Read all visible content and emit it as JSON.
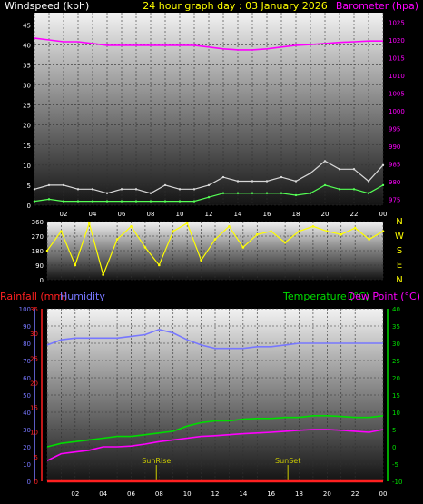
{
  "colors": {
    "wind": "#ffffff",
    "gust": "#d8d8d8",
    "wind_avg": "#55ff55",
    "barometer": "#ff00ff",
    "direction": "#ffff00",
    "rainfall": "#ff2020",
    "humidity": "#7777ff",
    "temperature": "#00dd00",
    "dewpoint": "#ff00ff",
    "title": "#ffff00",
    "sunmarker": "#cccc00",
    "axis": "#ffffff"
  },
  "chart_data": [
    {
      "type": "line",
      "title": "24 hour graph day : 03 January 2026",
      "left_label": "Windspeed (kph)",
      "right_label": "Barometer (hpa)",
      "x_tick_labels": [
        "02",
        "04",
        "06",
        "08",
        "10",
        "12",
        "14",
        "16",
        "18",
        "20",
        "22",
        "00"
      ],
      "y_left": {
        "ticks": [
          "0",
          "5",
          "10",
          "15",
          "20",
          "25",
          "30",
          "35",
          "40",
          "45"
        ],
        "lim": [
          0,
          48
        ]
      },
      "y_right": {
        "ticks": [
          "975",
          "980",
          "985",
          "990",
          "995",
          "1000",
          "1005",
          "1010",
          "1015",
          "1020",
          "1025"
        ],
        "lim": [
          973.3,
          1027.7
        ]
      },
      "series": [
        {
          "key": "wind_gust",
          "axis": "left",
          "x": [
            0,
            1,
            2,
            3,
            4,
            5,
            6,
            7,
            8,
            9,
            10,
            11,
            12,
            13,
            14,
            15,
            16,
            17,
            18,
            19,
            20,
            21,
            22,
            23,
            24
          ],
          "y": [
            4,
            5,
            5,
            4,
            4,
            3,
            4,
            4,
            3,
            5,
            4,
            4,
            5,
            7,
            6,
            6,
            6,
            7,
            6,
            8,
            11,
            9,
            9,
            6,
            10
          ]
        },
        {
          "key": "wind_avg",
          "axis": "left",
          "x": [
            0,
            1,
            2,
            3,
            4,
            5,
            6,
            7,
            8,
            9,
            10,
            11,
            12,
            13,
            14,
            15,
            16,
            17,
            18,
            19,
            20,
            21,
            22,
            23,
            24
          ],
          "y": [
            1,
            1.5,
            1,
            1,
            1,
            1,
            1,
            1,
            1,
            1,
            1,
            1,
            2,
            3,
            3,
            3,
            3,
            3,
            2.5,
            3,
            5,
            4,
            4,
            3,
            5
          ]
        },
        {
          "key": "barometer",
          "axis": "right",
          "x": [
            0,
            1,
            2,
            3,
            4,
            5,
            6,
            7,
            8,
            9,
            10,
            11,
            12,
            13,
            14,
            15,
            16,
            17,
            18,
            19,
            20,
            21,
            22,
            23,
            24
          ],
          "y": [
            1020.5,
            1020,
            1019.5,
            1019.5,
            1019,
            1018.5,
            1018.5,
            1018.5,
            1018.5,
            1018.5,
            1018.5,
            1018.5,
            1018,
            1017.5,
            1017.2,
            1017.2,
            1017.5,
            1018,
            1018.5,
            1018.7,
            1019,
            1019.3,
            1019.5,
            1019.7,
            1019.7
          ]
        }
      ]
    },
    {
      "type": "scatter",
      "right_labels": [
        "N",
        "W",
        "S",
        "E",
        "N"
      ],
      "y_left": {
        "ticks": [
          "0",
          "90",
          "180",
          "270",
          "360"
        ],
        "lim": [
          0,
          360
        ]
      },
      "series": [
        {
          "key": "wind_direction",
          "x": [
            0,
            1,
            2,
            3,
            4,
            5,
            6,
            7,
            8,
            9,
            10,
            11,
            12,
            13,
            14,
            15,
            16,
            17,
            18,
            19,
            20,
            21,
            22,
            23,
            24
          ],
          "y": [
            180,
            300,
            90,
            350,
            30,
            250,
            330,
            200,
            90,
            300,
            350,
            120,
            250,
            330,
            200,
            280,
            300,
            230,
            300,
            330,
            300,
            280,
            320,
            250,
            300
          ]
        }
      ]
    },
    {
      "type": "line",
      "left_label": "Rainfall (mm)",
      "left_label2": "Humidity",
      "right_label": "Temperature (°C)",
      "right_label2": "Dew Point (°C)",
      "x_tick_labels": [
        "02",
        "04",
        "06",
        "08",
        "10",
        "12",
        "14",
        "16",
        "18",
        "20",
        "22",
        "00"
      ],
      "y_outer_left": {
        "ticks": [
          "0",
          "10",
          "20",
          "30",
          "40",
          "50",
          "60",
          "70",
          "80",
          "90",
          "100"
        ],
        "lim": [
          0,
          100
        ]
      },
      "y_inner_left": {
        "ticks": [
          "0",
          "5",
          "10",
          "15",
          "20",
          "25",
          "30",
          "35"
        ],
        "lim": [
          0,
          35
        ]
      },
      "y_right": {
        "ticks": [
          "-10",
          "-5",
          "0",
          "5",
          "10",
          "15",
          "20",
          "25",
          "30",
          "35",
          "40"
        ],
        "lim": [
          -10,
          40
        ]
      },
      "annotations": [
        {
          "label": "SunRise",
          "x": 7.8
        },
        {
          "label": "SunSet",
          "x": 17.2
        }
      ],
      "series": [
        {
          "key": "rainfall",
          "axis": "inner_left",
          "x": [
            0,
            24
          ],
          "y": [
            0,
            0
          ]
        },
        {
          "key": "humidity",
          "axis": "outer_left",
          "x": [
            0,
            1,
            2,
            3,
            4,
            5,
            6,
            7,
            8,
            9,
            10,
            11,
            12,
            13,
            14,
            15,
            16,
            17,
            18,
            19,
            20,
            21,
            22,
            23,
            24
          ],
          "y": [
            79,
            82,
            83,
            83,
            83,
            83,
            84,
            85,
            88,
            86,
            82,
            79,
            77,
            77,
            77,
            78,
            78,
            79,
            80,
            80,
            80,
            80,
            80,
            80,
            80
          ]
        },
        {
          "key": "temperature",
          "axis": "right",
          "x": [
            0,
            1,
            2,
            3,
            4,
            5,
            6,
            7,
            8,
            9,
            10,
            11,
            12,
            13,
            14,
            15,
            16,
            17,
            18,
            19,
            20,
            21,
            22,
            23,
            24
          ],
          "y": [
            0,
            1,
            1.5,
            2,
            2.5,
            3,
            3,
            3.5,
            4,
            4.5,
            6,
            7,
            7.5,
            7.5,
            8,
            8.2,
            8.2,
            8.5,
            8.5,
            9,
            9,
            8.8,
            8.5,
            8.5,
            9
          ]
        },
        {
          "key": "dewpoint",
          "axis": "right",
          "x": [
            0,
            1,
            2,
            3,
            4,
            5,
            6,
            7,
            8,
            9,
            10,
            11,
            12,
            13,
            14,
            15,
            16,
            17,
            18,
            19,
            20,
            21,
            22,
            23,
            24
          ],
          "y": [
            -4,
            -2,
            -1.5,
            -1,
            0,
            0,
            0.2,
            0.8,
            1.5,
            2,
            2.5,
            3,
            3.2,
            3.5,
            3.8,
            4,
            4.2,
            4.5,
            4.8,
            5,
            5,
            4.8,
            4.5,
            4.2,
            5
          ]
        }
      ]
    }
  ]
}
